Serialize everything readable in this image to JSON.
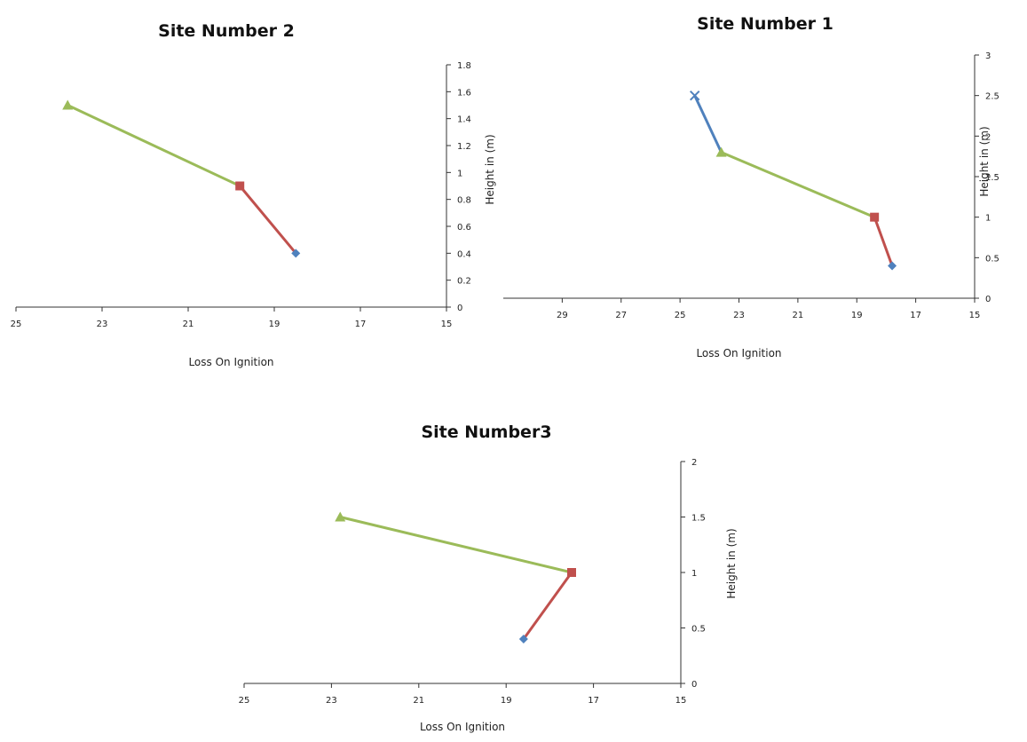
{
  "chart_data": [
    {
      "type": "line",
      "title": "Site Number 2",
      "xlabel": "Loss On Ignition",
      "ylabel": "Height in (m)",
      "x_reversed": true,
      "xlim": [
        25,
        15
      ],
      "ylim": [
        0,
        1.8
      ],
      "xticks": [
        "25",
        "23",
        "21",
        "19",
        "17",
        "15"
      ],
      "yticks": [
        "0",
        "0.2",
        "0.4",
        "0.6",
        "0.8",
        "1",
        "1.2",
        "1.4",
        "1.6",
        "1.8"
      ],
      "series": [
        {
          "color": "#9bbb59",
          "marker": "triangle",
          "points": [
            {
              "x": 23.8,
              "y": 1.5
            },
            {
              "x": 19.8,
              "y": 0.9
            }
          ]
        },
        {
          "color": "#c0504d",
          "marker": "square",
          "points": [
            {
              "x": 19.8,
              "y": 0.9
            },
            {
              "x": 18.5,
              "y": 0.4
            }
          ]
        },
        {
          "color": "#4f81bd",
          "marker": "diamond",
          "points": [
            {
              "x": 18.5,
              "y": 0.4
            }
          ]
        }
      ]
    },
    {
      "type": "line",
      "title": "Site Number 1",
      "xlabel": "Loss On Ignition",
      "ylabel": "Height in (m)",
      "x_reversed": true,
      "xlim": [
        31,
        15
      ],
      "ylim": [
        0,
        3
      ],
      "xticks": [
        "29",
        "27",
        "25",
        "23",
        "21",
        "19",
        "17",
        "15"
      ],
      "yticks": [
        "0",
        "0.5",
        "1",
        "1.5",
        "2",
        "2.5",
        "3"
      ],
      "series": [
        {
          "color": "#4f81bd",
          "marker": "x",
          "points": [
            {
              "x": 24.5,
              "y": 2.5
            },
            {
              "x": 23.6,
              "y": 1.8
            }
          ]
        },
        {
          "color": "#9bbb59",
          "marker": "triangle",
          "points": [
            {
              "x": 23.6,
              "y": 1.8
            },
            {
              "x": 18.4,
              "y": 1.0
            }
          ]
        },
        {
          "color": "#c0504d",
          "marker": "square",
          "points": [
            {
              "x": 18.4,
              "y": 1.0
            },
            {
              "x": 17.8,
              "y": 0.4
            }
          ]
        },
        {
          "color": "#4f81bd",
          "marker": "diamond",
          "points": [
            {
              "x": 17.8,
              "y": 0.4
            }
          ]
        }
      ]
    },
    {
      "type": "line",
      "title": "Site Number3",
      "xlabel": "Loss On Ignition",
      "ylabel": "Height in (m)",
      "x_reversed": true,
      "xlim": [
        25,
        15
      ],
      "ylim": [
        0,
        2
      ],
      "xticks": [
        "25",
        "23",
        "21",
        "19",
        "17",
        "15"
      ],
      "yticks": [
        "0",
        "0.5",
        "1",
        "1.5",
        "2"
      ],
      "series": [
        {
          "color": "#9bbb59",
          "marker": "triangle",
          "points": [
            {
              "x": 22.8,
              "y": 1.5
            },
            {
              "x": 17.5,
              "y": 1.0
            }
          ]
        },
        {
          "color": "#c0504d",
          "marker": "square",
          "points": [
            {
              "x": 17.5,
              "y": 1.0
            },
            {
              "x": 18.6,
              "y": 0.4
            }
          ]
        },
        {
          "color": "#4f81bd",
          "marker": "diamond",
          "points": [
            {
              "x": 18.6,
              "y": 0.4
            }
          ]
        }
      ]
    }
  ]
}
